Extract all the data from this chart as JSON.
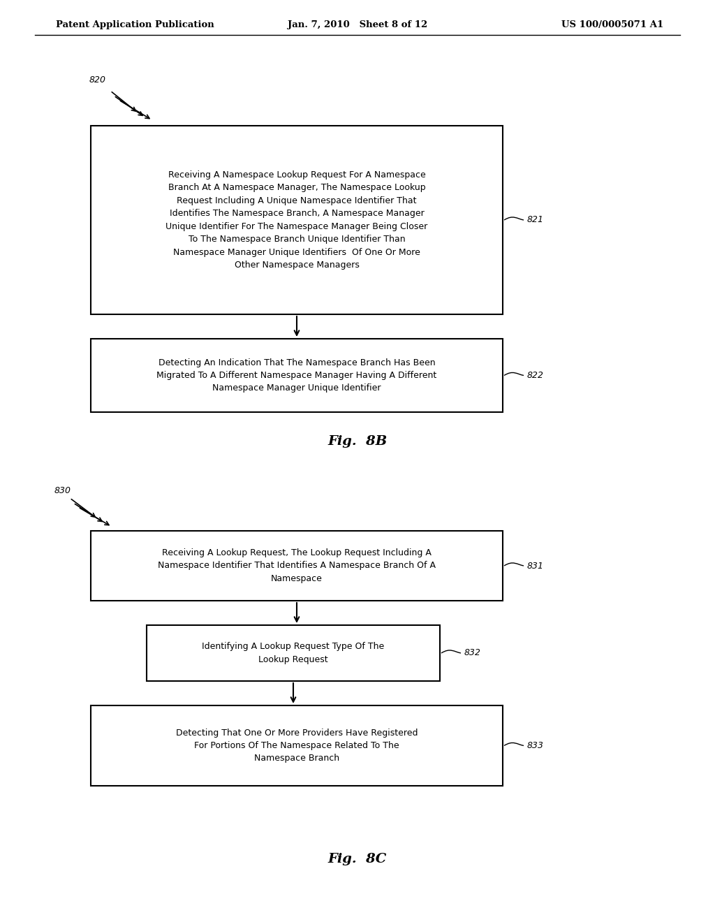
{
  "bg_color": "#ffffff",
  "header_left": "Patent Application Publication",
  "header_center": "Jan. 7, 2010   Sheet 8 of 12",
  "header_right": "US 100/0005071 A1",
  "fig8b_label": "Fig.  8B",
  "fig8c_label": "Fig.  8C",
  "ref_820": "820",
  "ref_821": "821",
  "ref_822": "822",
  "ref_830": "830",
  "ref_831": "831",
  "ref_832": "832",
  "ref_833": "833",
  "text_821": "Receiving A Namespace Lookup Request For A Namespace\nBranch At A Namespace Manager, The Namespace Lookup\nRequest Including A Unique Namespace Identifier That\nIdentifies The Namespace Branch, A Namespace Manager\nUnique Identifier For The Namespace Manager Being Closer\nTo The Namespace Branch Unique Identifier Than\nNamespace Manager Unique Identifiers  Of One Or More\nOther Namespace Managers",
  "text_822": "Detecting An Indication That The Namespace Branch Has Been\nMigrated To A Different Namespace Manager Having A Different\nNamespace Manager Unique Identifier",
  "text_831": "Receiving A Lookup Request, The Lookup Request Including A\nNamespace Identifier That Identifies A Namespace Branch Of A\nNamespace",
  "text_832": "Identifying A Lookup Request Type Of The\nLookup Request",
  "text_833": "Detecting That One Or More Providers Have Registered\nFor Portions Of The Namespace Related To The\nNamespace Branch"
}
